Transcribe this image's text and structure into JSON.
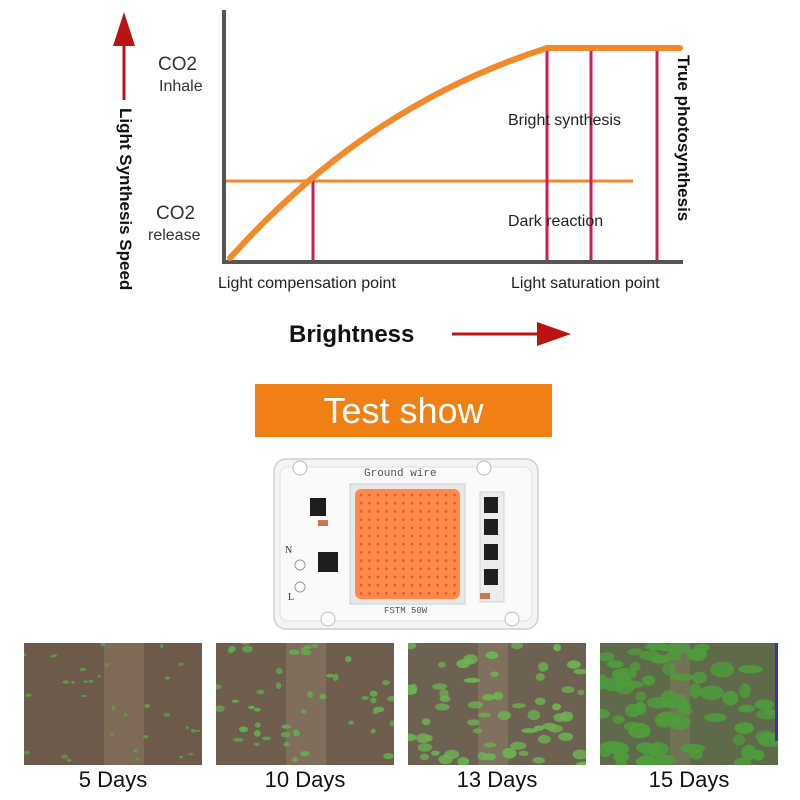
{
  "diagram": {
    "y_axis_label": "Light Synthesis Speed",
    "x_axis_label": "Brightness",
    "co2_inhale": {
      "formula": "CO2",
      "label": "Inhale"
    },
    "co2_release": {
      "formula": "CO2",
      "label": "release"
    },
    "bright_synthesis": "Bright synthesis",
    "dark_reaction": "Dark reaction",
    "true_photosynthesis": "True photosynthesis",
    "light_compensation_point": "Light compensation point",
    "light_saturation_point": "Light saturation point",
    "colors": {
      "curve": "#f28a2a",
      "line": "#f08a30",
      "marker": "#cc1f5a",
      "axis": "#555555",
      "arrow": "#b81414"
    }
  },
  "banner": {
    "title": "Test show",
    "color": "#f07f14"
  },
  "chip": {
    "ground_label": "Ground wire",
    "model": "FSTM 50W",
    "n_label": "N",
    "l_label": "L",
    "led_color": "#ff8a4c"
  },
  "growth": [
    {
      "label": "5 Days"
    },
    {
      "label": "10 Days"
    },
    {
      "label": "13 Days"
    },
    {
      "label": "15 Days"
    }
  ]
}
